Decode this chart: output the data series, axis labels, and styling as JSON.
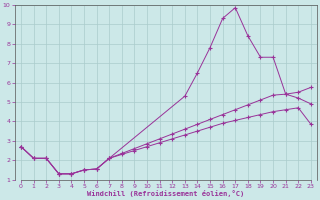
{
  "xlabel": "Windchill (Refroidissement éolien,°C)",
  "bg_color": "#cce8e8",
  "grid_color": "#aacccc",
  "line_color": "#993399",
  "tick_color": "#993399",
  "xlim": [
    -0.5,
    23.5
  ],
  "ylim": [
    1,
    10
  ],
  "xticks": [
    0,
    1,
    2,
    3,
    4,
    5,
    6,
    7,
    8,
    9,
    10,
    11,
    12,
    13,
    14,
    15,
    16,
    17,
    18,
    19,
    20,
    21,
    22,
    23
  ],
  "yticks": [
    1,
    2,
    3,
    4,
    5,
    6,
    7,
    8,
    9,
    10
  ],
  "curve1_x": [
    0,
    1,
    2,
    3,
    4,
    5,
    6,
    7,
    13,
    14,
    15,
    16,
    17,
    18,
    19,
    20,
    21,
    22,
    23
  ],
  "curve1_y": [
    2.7,
    2.1,
    2.1,
    1.3,
    1.3,
    1.5,
    1.55,
    2.1,
    5.3,
    6.5,
    7.8,
    9.3,
    9.85,
    8.4,
    7.3,
    7.3,
    5.4,
    5.2,
    4.9
  ],
  "curve2_x": [
    0,
    1,
    2,
    3,
    4,
    5,
    6,
    7,
    8,
    9,
    10,
    11,
    12,
    13,
    14,
    15,
    16,
    17,
    18,
    19,
    20,
    21,
    22,
    23
  ],
  "curve2_y": [
    2.7,
    2.1,
    2.1,
    1.3,
    1.3,
    1.5,
    1.55,
    2.1,
    2.35,
    2.6,
    2.85,
    3.1,
    3.35,
    3.6,
    3.85,
    4.1,
    4.35,
    4.6,
    4.85,
    5.1,
    5.35,
    5.4,
    5.5,
    5.75
  ],
  "curve3_x": [
    0,
    1,
    2,
    3,
    4,
    5,
    6,
    7,
    8,
    9,
    10,
    11,
    12,
    13,
    14,
    15,
    16,
    17,
    18,
    19,
    20,
    21,
    22,
    23
  ],
  "curve3_y": [
    2.7,
    2.1,
    2.1,
    1.3,
    1.3,
    1.5,
    1.55,
    2.1,
    2.3,
    2.5,
    2.7,
    2.9,
    3.1,
    3.3,
    3.5,
    3.7,
    3.9,
    4.05,
    4.2,
    4.35,
    4.5,
    4.6,
    4.7,
    3.85
  ],
  "marker": "+"
}
